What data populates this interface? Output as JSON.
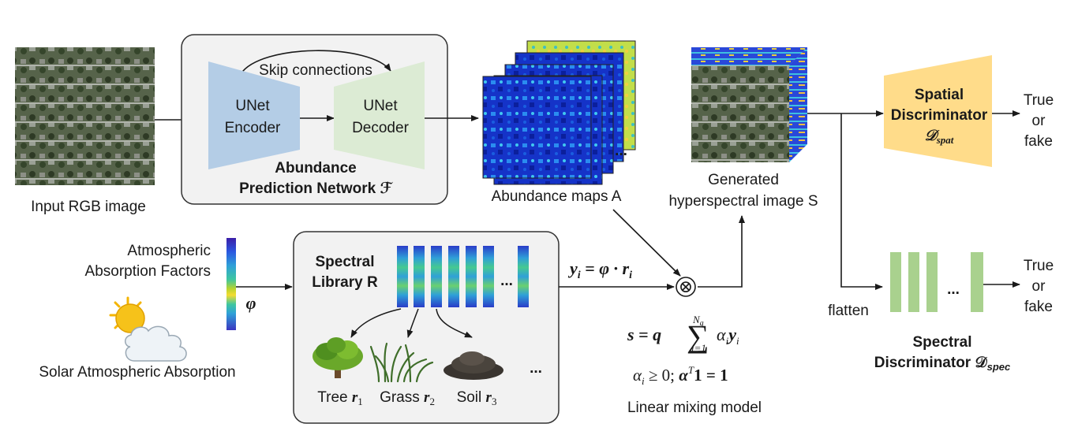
{
  "input_label": "Input RGB image",
  "apn": {
    "skip": "Skip connections",
    "encoder_l1": "UNet",
    "encoder_l2": "Encoder",
    "decoder_l1": "UNet",
    "decoder_l2": "Decoder",
    "title_l1": "Abundance",
    "title_l2": "Prediction Network ℱ"
  },
  "abundance": {
    "label": "Abundance maps A",
    "ellipsis": "..."
  },
  "generated": {
    "label_l1": "Generated",
    "label_l2": "hyperspectral image S"
  },
  "spatial": {
    "l1": "Spatial",
    "l2": "Discriminator",
    "sym": "𝒟",
    "sub": "spat",
    "out_l1": "True",
    "out_l2": "or",
    "out_l3": "fake"
  },
  "spectral_disc": {
    "flatten": "flatten",
    "ellipsis": "...",
    "l1": "Spectral",
    "l2": "Discriminator 𝒟",
    "sub": "spec",
    "out_l1": "True",
    "out_l2": "or",
    "out_l3": "fake"
  },
  "atmosphere": {
    "l1": "Atmospheric",
    "l2": "Absorption Factors",
    "phi": "φ",
    "solar": "Solar Atmospheric Absorption"
  },
  "library": {
    "l1": "Spectral",
    "l2": "Library R",
    "ellipsis": "...",
    "items": [
      {
        "name": "Tree",
        "sym": "r",
        "sub": "1"
      },
      {
        "name": "Grass",
        "sym": "r",
        "sub": "2"
      },
      {
        "name": "Soil",
        "sym": "r",
        "sub": "3"
      }
    ],
    "more": "..."
  },
  "equations": {
    "y": "y",
    "y_sub": "i",
    "y_rhs": " = φ · r",
    "y_rhs_sub": "i",
    "mix_lhs": "s = q",
    "sum": "∑",
    "sum_top": "N",
    "sum_top_sub": "g",
    "sum_bottom": "i=1",
    "sum_term": "α",
    "sum_term_sub": "i",
    "sum_term2": "y",
    "sum_term2_sub": "i",
    "constraint": "α",
    "constraint_sub": "i",
    "constraint_rest": " ≥ 0; ",
    "constraint_alpha": "α",
    "constraint_T": "T",
    "constraint_end": "1 = 1",
    "otimes": "⊗",
    "caption": "Linear mixing model"
  },
  "colors": {
    "encoder": "#b4cde6",
    "decoder": "#dcebd4",
    "spatial_disc": "#ffdc8a",
    "spectral_bar": "#a9d18e",
    "box_bg": "#f2f2f2",
    "line": "#1a1a1a"
  }
}
